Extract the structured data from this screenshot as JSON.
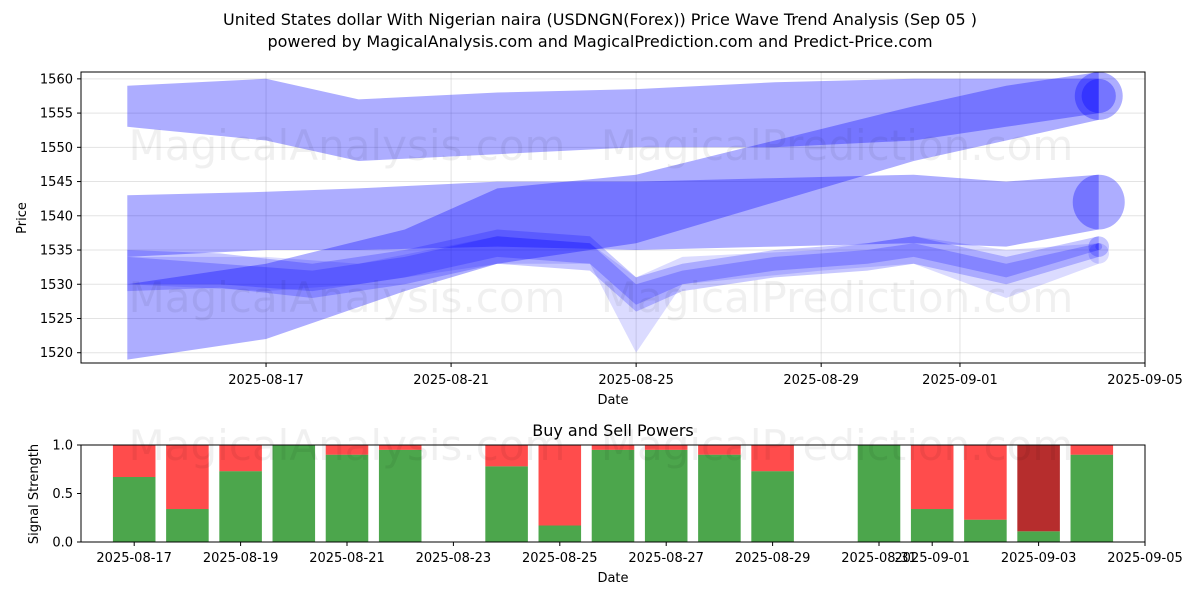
{
  "title_line1": "United States dollar With Nigerian naira (USDNGN(Forex)) Price Wave Trend Analysis (Sep 05 )",
  "title_line2": "powered by MagicalAnalysis.com and MagicalPrediction.com and Predict-Price.com",
  "watermarks": [
    "MagicalAnalysis.com",
    "MagicalPrediction.com"
  ],
  "colors": {
    "wave": "#0000ff",
    "buy": "#008000",
    "sell": "#ff0000",
    "sell_dark": "#b22222"
  },
  "chart_data": [
    {
      "type": "area",
      "title": "",
      "xlabel": "Date",
      "ylabel": "Price",
      "xlim": [
        "2025-08-13",
        "2025-09-05"
      ],
      "ylim": [
        1518.5,
        1561
      ],
      "xticks": [
        "2025-08-17",
        "2025-08-21",
        "2025-08-25",
        "2025-08-29",
        "2025-09-01",
        "2025-09-05"
      ],
      "yticks": [
        1520,
        1525,
        1530,
        1535,
        1540,
        1545,
        1550,
        1555,
        1560
      ],
      "grid": true,
      "series": [
        {
          "x": [
            "2025-08-14",
            "2025-08-17",
            "2025-08-19",
            "2025-08-22",
            "2025-08-25",
            "2025-08-28",
            "2025-08-31",
            "2025-09-02",
            "2025-09-04"
          ],
          "upper": [
            1559,
            1560,
            1557,
            1558,
            1558.5,
            1559.5,
            1560,
            1560,
            1560
          ],
          "lower": [
            1553,
            1551,
            1548,
            1549,
            1550,
            1550,
            1551,
            1553,
            1555
          ]
        },
        {
          "x": [
            "2025-08-14",
            "2025-08-17",
            "2025-08-19",
            "2025-08-22",
            "2025-08-25",
            "2025-08-28",
            "2025-08-31",
            "2025-09-02",
            "2025-09-04"
          ],
          "upper": [
            1543,
            1543.5,
            1544,
            1545,
            1545,
            1545.5,
            1546,
            1545,
            1546
          ],
          "lower": [
            1534,
            1535,
            1535,
            1535.5,
            1535,
            1535.5,
            1536,
            1535.5,
            1538
          ]
        },
        {
          "x": [
            "2025-08-14",
            "2025-08-17",
            "2025-08-20",
            "2025-08-22",
            "2025-08-25",
            "2025-08-28",
            "2025-08-31",
            "2025-09-02",
            "2025-09-04"
          ],
          "upper": [
            1530,
            1533,
            1538,
            1544,
            1546,
            1551,
            1556,
            1559,
            1561
          ],
          "lower": [
            1519,
            1522,
            1529,
            1533,
            1536,
            1542,
            1548,
            1551,
            1554
          ]
        },
        {
          "x": [
            "2025-08-14",
            "2025-08-16",
            "2025-08-18",
            "2025-08-20",
            "2025-08-22",
            "2025-08-24",
            "2025-08-25",
            "2025-08-26",
            "2025-08-28",
            "2025-08-30",
            "2025-08-31",
            "2025-09-02",
            "2025-09-04"
          ],
          "upper": [
            1535,
            1534.5,
            1533,
            1535,
            1538,
            1537,
            1531,
            1533,
            1535,
            1536,
            1537,
            1534,
            1537
          ],
          "lower": [
            1529,
            1529.5,
            1528,
            1530,
            1533,
            1532,
            1526,
            1529,
            1531,
            1532,
            1533,
            1530,
            1534
          ]
        },
        {
          "x": [
            "2025-08-14",
            "2025-08-16",
            "2025-08-18",
            "2025-08-20",
            "2025-08-22",
            "2025-08-24",
            "2025-08-25",
            "2025-08-26",
            "2025-08-28",
            "2025-08-30",
            "2025-08-31",
            "2025-09-02",
            "2025-09-04"
          ],
          "upper": [
            1534,
            1533,
            1532,
            1534,
            1537,
            1536,
            1530,
            1532,
            1534,
            1535,
            1536,
            1533,
            1536
          ],
          "lower": [
            1530,
            1530,
            1529,
            1531,
            1534,
            1533,
            1527,
            1530,
            1532,
            1533,
            1534,
            1531,
            1535
          ]
        },
        {
          "x": [
            "2025-08-14",
            "2025-08-17",
            "2025-08-19",
            "2025-08-22",
            "2025-08-24",
            "2025-08-25",
            "2025-08-26",
            "2025-08-29",
            "2025-08-31",
            "2025-09-02",
            "2025-09-04"
          ],
          "upper": [
            1534,
            1534,
            1533,
            1537,
            1536,
            1531,
            1534,
            1535,
            1537,
            1535,
            1536
          ],
          "lower": [
            1530,
            1529,
            1530,
            1533,
            1533,
            1520,
            1530,
            1532,
            1533,
            1528,
            1533
          ]
        }
      ]
    },
    {
      "type": "bar",
      "title": "Buy and Sell Powers",
      "xlabel": "Date",
      "ylabel": "Signal Strength",
      "xlim": [
        "2025-08-16",
        "2025-09-05"
      ],
      "ylim": [
        0,
        1
      ],
      "xticks": [
        "2025-08-17",
        "2025-08-19",
        "2025-08-21",
        "2025-08-23",
        "2025-08-25",
        "2025-08-27",
        "2025-08-29",
        "2025-08-31",
        "2025-09-01",
        "2025-09-03",
        "2025-09-05"
      ],
      "yticks": [
        0.0,
        0.5,
        1.0
      ],
      "categories": [
        "2025-08-17",
        "2025-08-18",
        "2025-08-19",
        "2025-08-20",
        "2025-08-21",
        "2025-08-22",
        "2025-08-24",
        "2025-08-25",
        "2025-08-26",
        "2025-08-27",
        "2025-08-28",
        "2025-08-29",
        "2025-08-31",
        "2025-09-01",
        "2025-09-02",
        "2025-09-03",
        "2025-09-04"
      ],
      "series": [
        {
          "name": "Buy",
          "values": [
            0.67,
            0.34,
            0.73,
            1.0,
            0.9,
            0.95,
            0.78,
            0.17,
            0.95,
            0.95,
            0.9,
            0.73,
            1.0,
            0.34,
            0.23,
            0.11,
            0.9
          ]
        },
        {
          "name": "Sell",
          "values": [
            0.33,
            0.66,
            0.27,
            0.0,
            0.1,
            0.05,
            0.22,
            0.83,
            0.05,
            0.05,
            0.1,
            0.27,
            0.0,
            0.66,
            0.77,
            0.89,
            0.1
          ]
        }
      ]
    }
  ]
}
